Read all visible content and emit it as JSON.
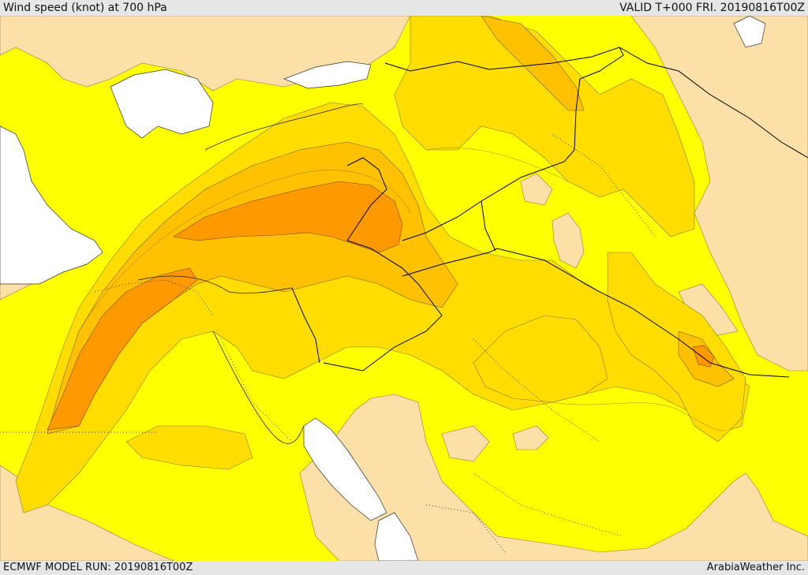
{
  "header": {
    "title": "Wind speed (knot) at 700 hPa",
    "valid": "VALID T+000 FRI. 20190816T00Z"
  },
  "footer": {
    "model_run": "ECMWF MODEL RUN: 20190816T00Z",
    "credit": "ArabiaWeather Inc."
  },
  "legend_colors": {
    "water": "#ffffff",
    "calm": "#fde0a8",
    "light": "#ffff00",
    "moderate": "#ffdd00",
    "fresh": "#ffc100",
    "strong": "#ff9900"
  }
}
